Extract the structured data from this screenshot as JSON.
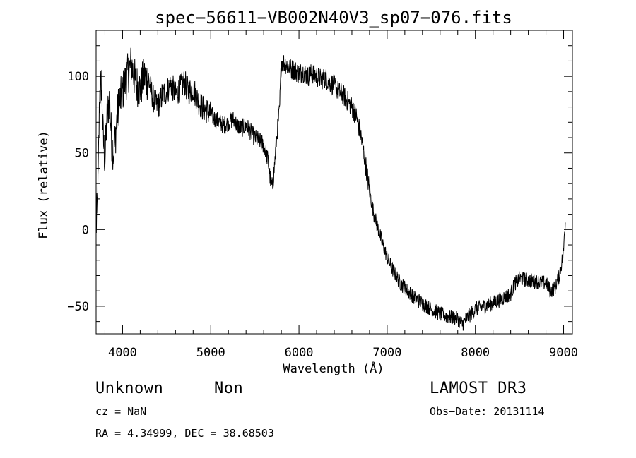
{
  "chart_data": {
    "type": "line",
    "title": "spec−56611−VB002N40V3_sp07−076.fits",
    "xlabel": "Wavelength (Å)",
    "ylabel": "Flux (relative)",
    "xlim": [
      3700,
      9100
    ],
    "ylim": [
      -68,
      130
    ],
    "xticks": [
      4000,
      5000,
      6000,
      7000,
      8000,
      9000
    ],
    "xtick_labels": [
      "4000",
      "5000",
      "6000",
      "7000",
      "8000",
      "9000"
    ],
    "yticks": [
      -50,
      0,
      50,
      100
    ],
    "ytick_labels": [
      "−50",
      "0",
      "50",
      "100"
    ],
    "grid": false,
    "series": [
      {
        "name": "flux",
        "x": [
          3700,
          3720,
          3740,
          3760,
          3780,
          3800,
          3820,
          3850,
          3880,
          3900,
          3950,
          4000,
          4050,
          4100,
          4150,
          4200,
          4250,
          4300,
          4350,
          4400,
          4450,
          4500,
          4550,
          4600,
          4650,
          4700,
          4750,
          4800,
          4850,
          4900,
          4950,
          5000,
          5050,
          5100,
          5150,
          5200,
          5250,
          5300,
          5350,
          5400,
          5450,
          5500,
          5550,
          5600,
          5650,
          5680,
          5700,
          5720,
          5740,
          5760,
          5780,
          5800,
          5850,
          5900,
          5950,
          6000,
          6050,
          6100,
          6150,
          6200,
          6250,
          6300,
          6350,
          6400,
          6450,
          6500,
          6550,
          6600,
          6650,
          6700,
          6750,
          6800,
          6850,
          6900,
          6950,
          7000,
          7050,
          7100,
          7150,
          7200,
          7300,
          7400,
          7500,
          7600,
          7700,
          7800,
          7850,
          7900,
          7950,
          8000,
          8100,
          8200,
          8300,
          8400,
          8450,
          8500,
          8600,
          8700,
          8800,
          8850,
          8900,
          8950,
          9000,
          9010,
          9020
        ],
        "y": [
          0,
          22,
          88,
          95,
          60,
          45,
          70,
          85,
          55,
          50,
          80,
          90,
          100,
          108,
          95,
          92,
          100,
          96,
          85,
          80,
          88,
          90,
          95,
          88,
          92,
          96,
          90,
          92,
          85,
          80,
          78,
          75,
          72,
          70,
          68,
          70,
          72,
          68,
          66,
          68,
          64,
          60,
          58,
          55,
          45,
          30,
          28,
          40,
          55,
          68,
          78,
          110,
          108,
          105,
          104,
          102,
          103,
          100,
          102,
          100,
          98,
          99,
          96,
          94,
          90,
          88,
          84,
          80,
          74,
          62,
          45,
          25,
          10,
          0,
          -10,
          -18,
          -25,
          -30,
          -35,
          -38,
          -44,
          -48,
          -52,
          -55,
          -57,
          -58,
          -62,
          -58,
          -55,
          -52,
          -50,
          -48,
          -45,
          -42,
          -35,
          -32,
          -33,
          -34,
          -35,
          -40,
          -38,
          -30,
          -15,
          0,
          5
        ]
      }
    ]
  },
  "footer": {
    "object_class": "Unknown",
    "subclass": "Non",
    "survey": "LAMOST DR3",
    "cz": "cz = NaN",
    "obs_date": "Obs−Date: 20131114",
    "coords": "RA =   4.34999, DEC =  38.68503"
  }
}
